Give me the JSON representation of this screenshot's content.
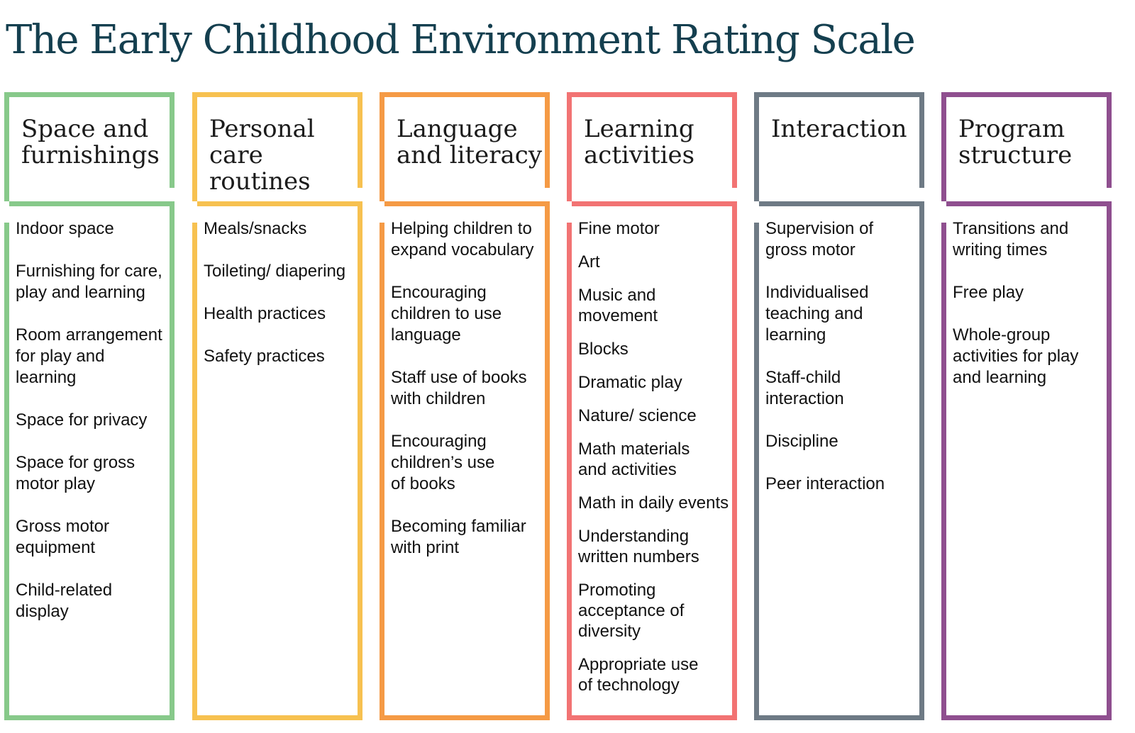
{
  "title": "The Early Childhood Environment Rating Scale",
  "colors": {
    "space": "#87c98a",
    "personal": "#f7c150",
    "language": "#f59a45",
    "learning": "#f27373",
    "interaction": "#6e7a85",
    "program": "#8f4f8f",
    "title": "#143f4f"
  },
  "columns": [
    {
      "heading": "Space and\nfurnishings",
      "items": [
        "Indoor space",
        "Furnishing for care,\nplay and learning",
        "Room arrangement\nfor play and\nlearning",
        "Space for privacy",
        "Space for gross\nmotor play",
        "Gross motor\nequipment",
        "Child-related\ndisplay"
      ]
    },
    {
      "heading": "Personal\ncare routines",
      "items": [
        "Meals/snacks",
        "Toileting/ diapering",
        "Health practices",
        "Safety practices"
      ]
    },
    {
      "heading": "Language\nand literacy",
      "items": [
        "Helping children to\nexpand vocabulary",
        "Encouraging\nchildren to use\nlanguage",
        "Staff use of books\nwith children",
        "Encouraging\nchildren’s use\nof books",
        "Becoming familiar\nwith print"
      ]
    },
    {
      "heading": "Learning\nactivities",
      "items": [
        "Fine motor",
        "Art",
        "Music and\nmovement",
        "Blocks",
        "Dramatic play",
        "Nature/ science",
        "Math materials\nand activities",
        "Math in daily events",
        "Understanding\nwritten numbers",
        "Promoting\nacceptance of\ndiversity",
        "Appropriate use\nof technology"
      ]
    },
    {
      "heading": "Interaction",
      "items": [
        "Supervision of\ngross motor",
        "Individualised\nteaching and\nlearning",
        "Staff-child\ninteraction",
        "Discipline",
        "Peer interaction"
      ]
    },
    {
      "heading": "Program\nstructure",
      "items": [
        "Transitions and\nwriting times",
        "Free play",
        "Whole-group\nactivities for play\nand learning"
      ]
    }
  ]
}
